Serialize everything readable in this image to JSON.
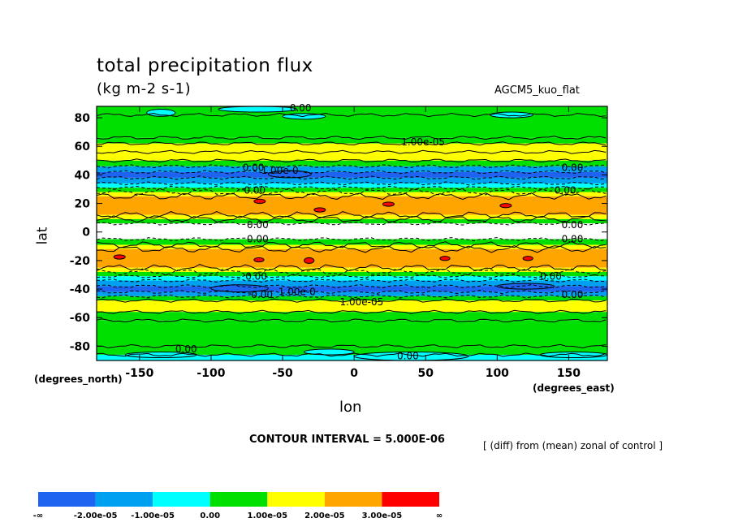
{
  "header": {
    "title": "total precipitation flux",
    "units": "(kg m-2 s-1)",
    "run": "AGCM5_kuo_flat"
  },
  "footer": {
    "contour_interval": "CONTOUR INTERVAL = 5.000E-06",
    "diff_note": "[ (diff) from (mean) zonal of control ]"
  },
  "chart_data": {
    "type": "heatmap",
    "title": "total precipitation flux",
    "subtitle": "(kg m-2 s-1)",
    "xlabel": "lon",
    "ylabel": "lat",
    "x_units_label": "(degrees_east)",
    "y_units_label": "(degrees_north)",
    "xlim": [
      -180,
      177
    ],
    "ylim": [
      -90,
      88
    ],
    "x_ticks": [
      -150,
      -100,
      -50,
      0,
      50,
      100,
      150
    ],
    "x_tick_labels": [
      "-150",
      "-100",
      "-50",
      "0",
      "50",
      "100",
      "150"
    ],
    "y_ticks": [
      80,
      60,
      40,
      20,
      0,
      -20,
      -40,
      -60,
      -80
    ],
    "y_tick_labels": [
      "80",
      "60",
      "40",
      "20",
      "0",
      "-20",
      "-40",
      "-60",
      "-80"
    ],
    "contour_interval": 5e-06,
    "colors": {
      "lt_m2e5": "#1e64f0",
      "m2e5_m1e5": "#00a0f0",
      "m1e5_0": "#00ffff",
      "0_1e5": "#00e000",
      "1e5_2e5": "#ffff00",
      "2e5_3e5": "#ffa500",
      "gt_3e5": "#ff0000",
      "missing": "#ffffff"
    },
    "legend": {
      "placement": "bottom",
      "colors": [
        "#1e64f0",
        "#00a0f0",
        "#00ffff",
        "#00e000",
        "#ffff00",
        "#ffa500",
        "#ff0000"
      ],
      "labels": [
        "-∞",
        "-2.00e-05",
        "-1.00e-05",
        "0.00",
        "1.00e-05",
        "2.00e-05",
        "3.00e-05",
        "∞"
      ]
    },
    "zonal_bands": [
      {
        "lat": [
          82,
          88
        ],
        "color": "#00e000"
      },
      {
        "lat": [
          66,
          82
        ],
        "color": "#00e000"
      },
      {
        "lat": [
          62,
          66
        ],
        "color": "#00e000"
      },
      {
        "lat": [
          56,
          62
        ],
        "color": "#ffff00"
      },
      {
        "lat": [
          50,
          56
        ],
        "color": "#ffff00"
      },
      {
        "lat": [
          46,
          50
        ],
        "color": "#00e000"
      },
      {
        "lat": [
          42,
          46
        ],
        "color": "#00a0f0"
      },
      {
        "lat": [
          38,
          42
        ],
        "color": "#1e64f0"
      },
      {
        "lat": [
          34,
          38
        ],
        "color": "#00a0f0"
      },
      {
        "lat": [
          31,
          34
        ],
        "color": "#00ffff"
      },
      {
        "lat": [
          28,
          31
        ],
        "color": "#00e000"
      },
      {
        "lat": [
          25,
          28
        ],
        "color": "#ffff00"
      },
      {
        "lat": [
          12,
          25
        ],
        "color": "#ffa500"
      },
      {
        "lat": [
          9,
          12
        ],
        "color": "#ffff00"
      },
      {
        "lat": [
          6,
          9
        ],
        "color": "#00e000"
      },
      {
        "lat": [
          -5,
          6
        ],
        "color": "#ffffff"
      },
      {
        "lat": [
          -9,
          -5
        ],
        "color": "#00e000"
      },
      {
        "lat": [
          -12,
          -9
        ],
        "color": "#ffff00"
      },
      {
        "lat": [
          -25,
          -12
        ],
        "color": "#ffa500"
      },
      {
        "lat": [
          -28,
          -25
        ],
        "color": "#ffff00"
      },
      {
        "lat": [
          -31,
          -28
        ],
        "color": "#00e000"
      },
      {
        "lat": [
          -34,
          -31
        ],
        "color": "#00ffff"
      },
      {
        "lat": [
          -38,
          -34
        ],
        "color": "#00a0f0"
      },
      {
        "lat": [
          -42,
          -38
        ],
        "color": "#1e64f0"
      },
      {
        "lat": [
          -45,
          -42
        ],
        "color": "#00a0f0"
      },
      {
        "lat": [
          -48,
          -45
        ],
        "color": "#00e000"
      },
      {
        "lat": [
          -56,
          -48
        ],
        "color": "#ffff00"
      },
      {
        "lat": [
          -62,
          -56
        ],
        "color": "#00e000"
      },
      {
        "lat": [
          -80,
          -62
        ],
        "color": "#00e000"
      },
      {
        "lat": [
          -86,
          -80
        ],
        "color": "#00e000"
      },
      {
        "lat": [
          -90,
          -86
        ],
        "color": "#00ffff"
      }
    ],
    "patches": [
      {
        "lon": [
          -145,
          -125
        ],
        "lat": [
          81,
          86
        ],
        "color": "#00ffff"
      },
      {
        "lon": [
          -95,
          -40
        ],
        "lat": [
          84,
          88
        ],
        "color": "#00ffff"
      },
      {
        "lon": [
          -50,
          -20
        ],
        "lat": [
          79,
          83
        ],
        "color": "#00ffff"
      },
      {
        "lon": [
          95,
          125
        ],
        "lat": [
          80,
          84
        ],
        "color": "#00ffff"
      },
      {
        "lon": [
          -160,
          -110
        ],
        "lat": [
          -88,
          -84
        ],
        "color": "#00ffff"
      },
      {
        "lon": [
          -35,
          0
        ],
        "lat": [
          -86,
          -82
        ],
        "color": "#00ffff"
      },
      {
        "lon": [
          0,
          80
        ],
        "lat": [
          -90,
          -84
        ],
        "color": "#00ffff"
      },
      {
        "lon": [
          130,
          177
        ],
        "lat": [
          -88,
          -84
        ],
        "color": "#00ffff"
      },
      {
        "lon": [
          -60,
          -30
        ],
        "lat": [
          38,
          43
        ],
        "color": "#1e64f0"
      },
      {
        "lon": [
          100,
          140
        ],
        "lat": [
          -40,
          -36
        ],
        "color": "#1e64f0"
      },
      {
        "lon": [
          -100,
          -60
        ],
        "lat": [
          -42,
          -37
        ],
        "color": "#1e64f0"
      },
      {
        "lon": [
          -70,
          -62
        ],
        "lat": [
          20,
          23
        ],
        "color": "#ff0000"
      },
      {
        "lon": [
          -28,
          -20
        ],
        "lat": [
          14,
          17
        ],
        "color": "#ff0000"
      },
      {
        "lon": [
          20,
          28
        ],
        "lat": [
          18,
          21
        ],
        "color": "#ff0000"
      },
      {
        "lon": [
          102,
          110
        ],
        "lat": [
          17,
          20
        ],
        "color": "#ff0000"
      },
      {
        "lon": [
          -168,
          -160
        ],
        "lat": [
          -19,
          -16
        ],
        "color": "#ff0000"
      },
      {
        "lon": [
          -70,
          -63
        ],
        "lat": [
          -21,
          -18
        ],
        "color": "#ff0000"
      },
      {
        "lon": [
          -35,
          -28
        ],
        "lat": [
          -22,
          -18
        ],
        "color": "#ff0000"
      },
      {
        "lon": [
          60,
          67
        ],
        "lat": [
          -20,
          -17
        ],
        "color": "#ff0000"
      },
      {
        "lon": [
          118,
          125
        ],
        "lat": [
          -20,
          -17
        ],
        "color": "#ff0000"
      }
    ],
    "contour_labels": [
      {
        "text": "0.00",
        "lon": -45,
        "lat": 87
      },
      {
        "text": "1.00e-05",
        "lon": 33,
        "lat": 63
      },
      {
        "text": "0.00",
        "lon": -78,
        "lat": 45
      },
      {
        "text": "1.00e-0",
        "lon": -65,
        "lat": 43
      },
      {
        "text": "0.00",
        "lon": 145,
        "lat": 45
      },
      {
        "text": "0.00",
        "lon": -77,
        "lat": 29
      },
      {
        "text": "0.00",
        "lon": 140,
        "lat": 29
      },
      {
        "text": "0.00",
        "lon": -75,
        "lat": 5
      },
      {
        "text": "0.00",
        "lon": 145,
        "lat": 5
      },
      {
        "text": "0.00",
        "lon": -75,
        "lat": -5
      },
      {
        "text": "0.00",
        "lon": 145,
        "lat": -5
      },
      {
        "text": "0.00",
        "lon": -76,
        "lat": -31
      },
      {
        "text": "0.00",
        "lon": 130,
        "lat": -31
      },
      {
        "text": "0.00",
        "lon": -72,
        "lat": -44
      },
      {
        "text": "1.00e-0",
        "lon": -53,
        "lat": -42
      },
      {
        "text": "0.00",
        "lon": 145,
        "lat": -44
      },
      {
        "text": "1.00e-05",
        "lon": -10,
        "lat": -49
      },
      {
        "text": "0.00",
        "lon": -125,
        "lat": -82
      },
      {
        "text": "0.00",
        "lon": 30,
        "lat": -87
      }
    ]
  }
}
